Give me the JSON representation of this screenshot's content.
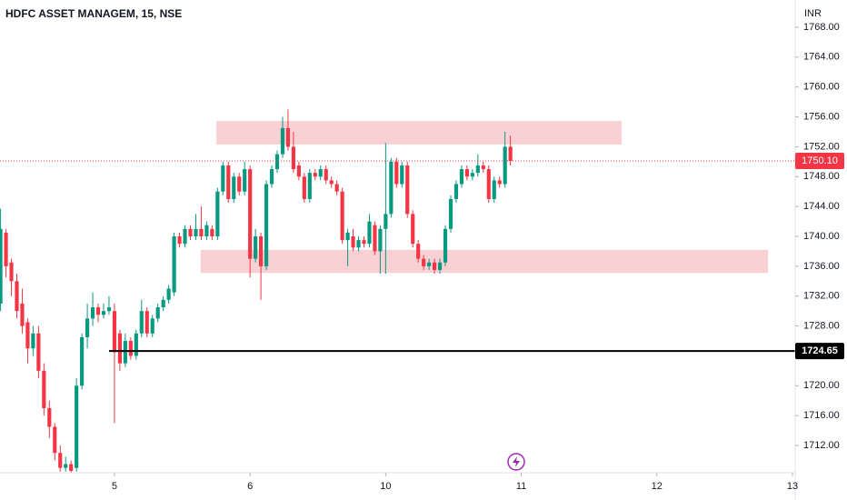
{
  "chart_data": {
    "type": "candlestick",
    "title": "HDFC ASSET MANAGEM, 15, NSE",
    "currency": "INR",
    "x": [
      0,
      1,
      2,
      3,
      4,
      5,
      6,
      7,
      8,
      9,
      10,
      11,
      12,
      13,
      14,
      15,
      16,
      17,
      18,
      19,
      20,
      21,
      22,
      23,
      24,
      25,
      26,
      27,
      28,
      29,
      30,
      31,
      32,
      33,
      34,
      35,
      36,
      37,
      38,
      39,
      40,
      41,
      42,
      43,
      44,
      45,
      46,
      47,
      48,
      49,
      50,
      51,
      52,
      53,
      54,
      55,
      56,
      57,
      58,
      59,
      60,
      61,
      62,
      63,
      64,
      65,
      66,
      67,
      68,
      69,
      70,
      71,
      72,
      73,
      74,
      75,
      76,
      77,
      78,
      79,
      80,
      81,
      82,
      83,
      84,
      85,
      86,
      87,
      88,
      89,
      90,
      91,
      92,
      93,
      94
    ],
    "open": [
      1731,
      1740.5,
      1736.5,
      1734,
      1731,
      1728.5,
      1725,
      1727,
      1722,
      1717,
      1714.5,
      1711,
      1709,
      1709.5,
      1709,
      1720,
      1726.5,
      1729,
      1730.5,
      1729.5,
      1730,
      1730,
      1727,
      1723,
      1726,
      1724,
      1727,
      1730,
      1727,
      1729,
      1730.5,
      1731.5,
      1732.5,
      1740,
      1739,
      1741,
      1740,
      1741,
      1740,
      1741,
      1740,
      1746,
      1749.5,
      1745,
      1748,
      1746,
      1749,
      1737,
      1740,
      1736,
      1747,
      1749,
      1751,
      1754.5,
      1752,
      1749.5,
      1748,
      1745,
      1748.5,
      1748,
      1749,
      1747.5,
      1747,
      1746,
      1739.5,
      1740,
      1738.5,
      1739.5,
      1739,
      1741.5,
      1738,
      1741,
      1743,
      1750,
      1747,
      1749.5,
      1743,
      1739,
      1737,
      1736,
      1736.5,
      1735.5,
      1736.5,
      1741,
      1745,
      1747,
      1749,
      1748,
      1748.5,
      1749.5,
      1749,
      1745,
      1747.5,
      1747,
      1752
    ],
    "high": [
      1743.7,
      1741,
      1737,
      1735,
      1733,
      1729,
      1728,
      1728,
      1723,
      1718,
      1715,
      1712,
      1710.5,
      1710,
      1721,
      1727,
      1731,
      1732.5,
      1731,
      1731,
      1732,
      1731,
      1727.5,
      1727,
      1726.5,
      1727.5,
      1731.5,
      1730.5,
      1729.5,
      1731,
      1732,
      1733.5,
      1740.5,
      1740.5,
      1741.5,
      1741.5,
      1743,
      1744,
      1742,
      1741.5,
      1746.5,
      1750,
      1750,
      1748.5,
      1748.5,
      1750,
      1749.5,
      1741,
      1740.5,
      1747.5,
      1749.5,
      1751.5,
      1756,
      1757,
      1754,
      1750,
      1748.5,
      1749,
      1749,
      1749.5,
      1749.5,
      1748,
      1747.5,
      1746.5,
      1741,
      1741,
      1740,
      1740,
      1743,
      1742,
      1741.5,
      1752.5,
      1750.5,
      1750.5,
      1750,
      1750,
      1743.5,
      1739.5,
      1737.5,
      1737,
      1737,
      1737,
      1741.5,
      1745.5,
      1747.5,
      1749.5,
      1749.5,
      1749,
      1751,
      1750,
      1749.5,
      1748,
      1748,
      1754,
      1753.5
    ],
    "low": [
      1730,
      1734.5,
      1732,
      1729,
      1727,
      1723,
      1724,
      1721,
      1716,
      1713,
      1710,
      1708.5,
      1708.5,
      1708.4,
      1708.5,
      1719.5,
      1725,
      1728,
      1728.5,
      1729,
      1729.5,
      1715,
      1722,
      1722.5,
      1723.5,
      1723.5,
      1726.5,
      1726.5,
      1726.5,
      1728.5,
      1730,
      1731,
      1732,
      1738.5,
      1738.5,
      1739.5,
      1739.5,
      1739.5,
      1739.5,
      1739.5,
      1739.5,
      1745.5,
      1744.5,
      1744.5,
      1745.5,
      1745.5,
      1734.5,
      1736.5,
      1731.5,
      1735.5,
      1746.5,
      1748.5,
      1750.5,
      1751.5,
      1748.5,
      1747.5,
      1744.5,
      1744.5,
      1747.5,
      1747.5,
      1747,
      1746.5,
      1745.5,
      1739,
      1736,
      1738,
      1738,
      1738.5,
      1738.5,
      1737.5,
      1735,
      1735,
      1742.5,
      1746.5,
      1746.5,
      1742.5,
      1738.5,
      1736.5,
      1735.5,
      1735.5,
      1735,
      1735,
      1736,
      1740.5,
      1744.5,
      1746.5,
      1747.5,
      1747.5,
      1748,
      1748.5,
      1744.5,
      1744.5,
      1746.5,
      1746.5,
      1749.5
    ],
    "close": [
      1741,
      1736,
      1734,
      1730,
      1728,
      1725,
      1727,
      1722,
      1717,
      1714.5,
      1711,
      1709,
      1709.5,
      1708.6,
      1720,
      1726.5,
      1729,
      1730.5,
      1729.5,
      1730,
      1730.5,
      1724.5,
      1723,
      1726,
      1724,
      1727,
      1730,
      1727,
      1729,
      1730.5,
      1731.5,
      1733,
      1740,
      1739,
      1741,
      1740,
      1741,
      1740,
      1741.5,
      1740,
      1746,
      1749.5,
      1745,
      1748,
      1746,
      1749,
      1737,
      1740,
      1736,
      1747,
      1749,
      1751,
      1754.5,
      1752,
      1749,
      1748,
      1745,
      1748.5,
      1748,
      1749,
      1747.5,
      1747,
      1746,
      1739.5,
      1740.5,
      1738.5,
      1739.5,
      1739,
      1742,
      1738,
      1741,
      1743,
      1750,
      1747,
      1749.5,
      1743,
      1739,
      1737,
      1736,
      1736.5,
      1735.5,
      1736.5,
      1741,
      1745,
      1747,
      1749,
      1748,
      1748.5,
      1749.5,
      1749,
      1745,
      1747.5,
      1747,
      1752,
      1750.1
    ],
    "up_color": "#089981",
    "down_color": "#f23645",
    "xlim": [
      -0.1,
      146.5
    ],
    "ylim": [
      1708.35,
      1771.65
    ],
    "xticks": [
      {
        "value": 21,
        "label": "5"
      },
      {
        "value": 46,
        "label": "6"
      },
      {
        "value": 71,
        "label": "10"
      },
      {
        "value": 96,
        "label": "11"
      },
      {
        "value": 121,
        "label": "12"
      },
      {
        "value": 146,
        "label": "13"
      }
    ],
    "yticks": [
      {
        "value": 1712,
        "label": "1712.00"
      },
      {
        "value": 1716,
        "label": "1716.00"
      },
      {
        "value": 1720,
        "label": "1720.00"
      },
      {
        "value": 1724,
        "label": "1724.00"
      },
      {
        "value": 1728,
        "label": "1728.00"
      },
      {
        "value": 1732,
        "label": "1732.00"
      },
      {
        "value": 1736,
        "label": "1736.00"
      },
      {
        "value": 1740,
        "label": "1740.00"
      },
      {
        "value": 1744,
        "label": "1744.00"
      },
      {
        "value": 1748,
        "label": "1748.00"
      },
      {
        "value": 1752,
        "label": "1752.00"
      },
      {
        "value": 1756,
        "label": "1756.00"
      },
      {
        "value": 1760,
        "label": "1760.00"
      },
      {
        "value": 1764,
        "label": "1764.00"
      },
      {
        "value": 1768,
        "label": "1768.00"
      }
    ],
    "last_price": {
      "value": 1750.1,
      "label": "1750.10"
    },
    "last_price_color": "#f23645",
    "hline": {
      "value": 1724.65,
      "x": 20,
      "color": "#000000"
    },
    "zones": [
      {
        "x": [
          39.8,
          114.5
        ],
        "y": [
          1752.3,
          1755.45
        ]
      },
      {
        "x": [
          36.9,
          141.5
        ],
        "y": [
          1735.1,
          1738.2
        ]
      }
    ],
    "zone_color": "#f8c8cc"
  }
}
